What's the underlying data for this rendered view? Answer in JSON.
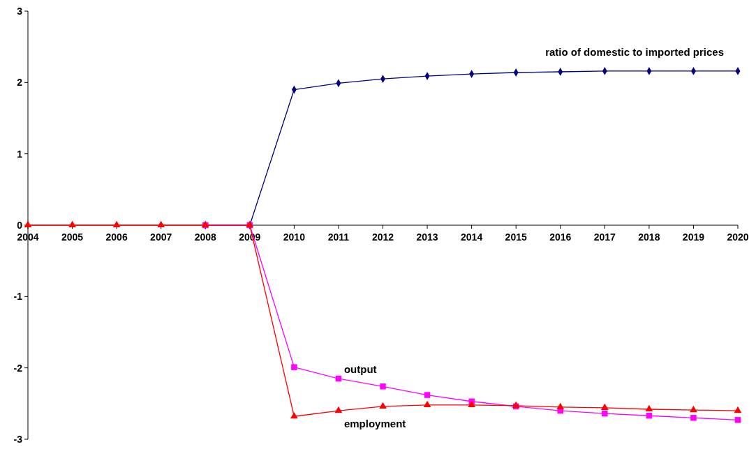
{
  "chart_data": {
    "type": "line",
    "categories": [
      "2004",
      "2005",
      "2006",
      "2007",
      "2008",
      "2009",
      "2010",
      "2011",
      "2012",
      "2013",
      "2014",
      "2015",
      "2016",
      "2017",
      "2018",
      "2019",
      "2020"
    ],
    "ylim": [
      -3,
      3
    ],
    "yticks": [
      -3,
      -2,
      -1,
      0,
      1,
      2,
      3
    ],
    "grid": false,
    "legend": false,
    "series": [
      {
        "name": "ratio of domestic to imported prices",
        "color": "#000080",
        "marker": "diamond",
        "values": [
          null,
          null,
          null,
          null,
          0,
          0,
          1.9,
          1.99,
          2.05,
          2.09,
          2.12,
          2.14,
          2.15,
          2.16,
          2.16,
          2.16,
          2.16
        ]
      },
      {
        "name": "output",
        "color": "#ff00ff",
        "marker": "square",
        "values": [
          null,
          null,
          null,
          null,
          0,
          0,
          -1.99,
          -2.15,
          -2.26,
          -2.38,
          -2.47,
          -2.54,
          -2.6,
          -2.64,
          -2.67,
          -2.7,
          -2.73
        ]
      },
      {
        "name": "employment",
        "color": "#ff0000",
        "marker": "triangle",
        "values": [
          0,
          0,
          0,
          0,
          0,
          0,
          -2.68,
          -2.6,
          -2.54,
          -2.52,
          -2.52,
          -2.53,
          -2.55,
          -2.56,
          -2.58,
          -2.59,
          -2.6
        ]
      }
    ]
  }
}
